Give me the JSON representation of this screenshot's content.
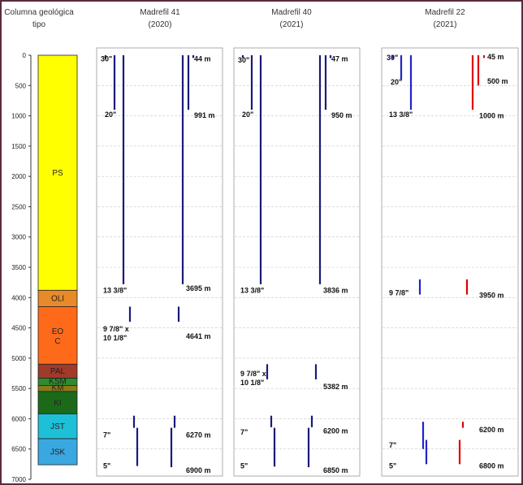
{
  "column_title": [
    "Columna geológica",
    "tipo"
  ],
  "depth_axis": {
    "min": 0,
    "max": 7000,
    "step": 500
  },
  "formations": [
    {
      "name": "PS",
      "top": 0,
      "bottom": 3880,
      "color": "#ffff00"
    },
    {
      "name": "OLI",
      "top": 3880,
      "bottom": 4150,
      "color": "#e98a2a"
    },
    {
      "name": "EO C",
      "top": 4150,
      "bottom": 5100,
      "color": "#ff6a1a"
    },
    {
      "name": "PAL",
      "top": 5100,
      "bottom": 5330,
      "color": "#a03a2a"
    },
    {
      "name": "KSM",
      "top": 5330,
      "bottom": 5450,
      "color": "#2e8b2e"
    },
    {
      "name": "KM",
      "top": 5450,
      "bottom": 5550,
      "color": "#8a7a1a"
    },
    {
      "name": "KI",
      "top": 5550,
      "bottom": 5920,
      "color": "#1a6a1a"
    },
    {
      "name": "JST",
      "top": 5920,
      "bottom": 6330,
      "color": "#1ec0d8"
    },
    {
      "name": "JSK",
      "top": 6330,
      "bottom": 6760,
      "color": "#3aa8e0"
    }
  ],
  "wells": [
    {
      "name": "Madrefil 41",
      "year": "(2020)",
      "color": "#1a1a7a",
      "color2": "#1a1a7a",
      "left_strings": [
        {
          "label": "30\"",
          "depth": 60,
          "label_depth": 60
        },
        {
          "label": "20\"",
          "depth": 900,
          "label_depth": 980
        },
        {
          "label": "13 3/8\"",
          "depth": 3780,
          "label_depth": 3880
        },
        {
          "label": "9 7/8\" x",
          "label2": "10 1/8\"",
          "depth": 4400,
          "label_depth": 4520
        },
        {
          "label": "7\"",
          "depth": 6150,
          "label_depth": 6270
        },
        {
          "label": "5\"",
          "depth": 6780,
          "label_depth": 6780
        }
      ],
      "right_strings": [
        {
          "label": "44 m",
          "depth": 44,
          "label_depth": 60
        },
        {
          "label": "991 m",
          "depth": 900,
          "label_depth": 991
        },
        {
          "label": "3695 m",
          "depth": 3780,
          "label_depth": 3850
        },
        {
          "label": "4641 m",
          "depth": 4400,
          "label_depth": 4641
        },
        {
          "label": "6270 m",
          "depth": 6150,
          "label_depth": 6270
        },
        {
          "label": "6900 m",
          "depth": 6800,
          "label_depth": 6850
        }
      ]
    },
    {
      "name": "Madrefil 40",
      "year": "(2021)",
      "color": "#1a1a7a",
      "color2": "#1a1a7a",
      "left_strings": [
        {
          "label": "30\"",
          "depth": 40,
          "label_depth": 80
        },
        {
          "label": "20\"",
          "depth": 900,
          "label_depth": 980
        },
        {
          "label": "13 3/8\"",
          "depth": 3780,
          "label_depth": 3880
        },
        {
          "label": "9 7/8\" x",
          "label2": "10 1/8\"",
          "depth": 5350,
          "label_depth": 5260
        },
        {
          "label": "7\"",
          "depth": 6140,
          "label_depth": 6220
        },
        {
          "label": "5\"",
          "depth": 6790,
          "label_depth": 6780
        }
      ],
      "right_strings": [
        {
          "label": "47 m",
          "depth": 47,
          "label_depth": 60
        },
        {
          "label": "950 m",
          "depth": 900,
          "label_depth": 990
        },
        {
          "label": "3836 m",
          "depth": 3780,
          "label_depth": 3880
        },
        {
          "label": "5382 m",
          "depth": 5350,
          "label_depth": 5470
        },
        {
          "label": "6200 m",
          "depth": 6140,
          "label_depth": 6200
        },
        {
          "label": "6850 m",
          "depth": 6800,
          "label_depth": 6850
        }
      ]
    },
    {
      "name": "Madrefil 22",
      "year": "(2021)",
      "color": "#2222cc",
      "color2": "#e00000",
      "left_strings": [
        {
          "label": "30\"",
          "depth": 60,
          "label_depth": 40
        },
        {
          "label": "20\"",
          "depth": 400,
          "label_depth": 440
        },
        {
          "label": "13 3/8\"",
          "depth": 900,
          "label_depth": 980
        },
        {
          "label": "9 7/8\"",
          "depth": 3950,
          "label_depth": 3920
        },
        {
          "label": "7\"",
          "depth": 6500,
          "label_depth": 6440
        },
        {
          "label": "5\"",
          "depth": 6750,
          "label_depth": 6780
        }
      ],
      "right_strings": [
        {
          "label": "45 m",
          "depth": 45,
          "label_depth": 30
        },
        {
          "label": "500 m",
          "depth": 500,
          "label_depth": 430
        },
        {
          "label": "1000 m",
          "depth": 900,
          "label_depth": 1000
        },
        {
          "label": "3950 m",
          "depth": 3950,
          "label_depth": 3960
        },
        {
          "label": "6200 m",
          "depth": 6150,
          "label_depth": 6180
        },
        {
          "label": "6800 m",
          "depth": 6750,
          "label_depth": 6780
        }
      ]
    }
  ]
}
